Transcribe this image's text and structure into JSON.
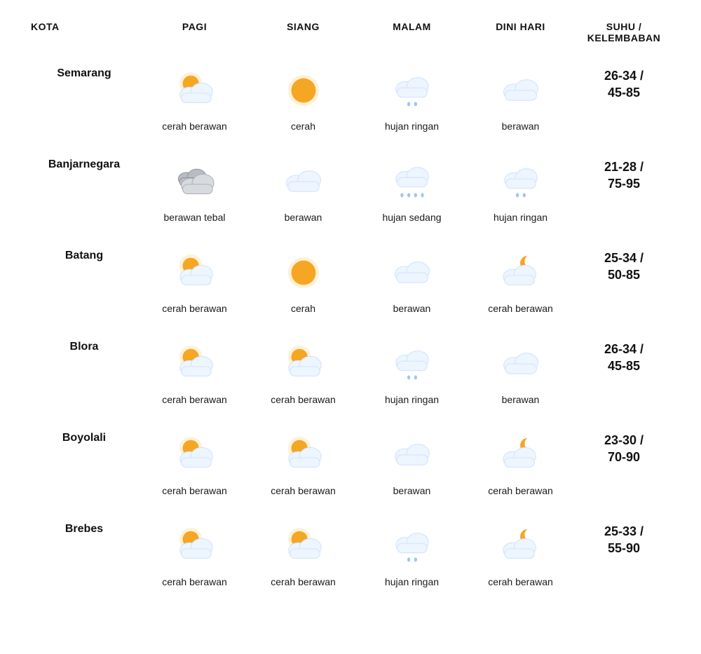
{
  "table": {
    "headers": {
      "city": "KOTA",
      "morning": "PAGI",
      "noon": "SIANG",
      "night": "MALAM",
      "late": "DINI HARI",
      "temp": "SUHU / KELEMBABAN"
    },
    "icon_style": {
      "sun_fill": "#f5a623",
      "sun_glow": "#ffe7b8",
      "moon_fill": "#f5a623",
      "cloud_light_fill": "#edf5ff",
      "cloud_light_stroke": "#cfe2fb",
      "cloud_dark_fill": "#b9bdc3",
      "cloud_dark_stroke": "#8f949b",
      "rain_fill": "#9ec7f2"
    },
    "rows": [
      {
        "city": "Semarang",
        "temp": "26-34 / 45-85",
        "cells": [
          {
            "icon": "sun-cloud",
            "label": "cerah berawan"
          },
          {
            "icon": "sun",
            "label": "cerah"
          },
          {
            "icon": "rain-light",
            "label": "hujan ringan"
          },
          {
            "icon": "cloud",
            "label": "berawan"
          }
        ]
      },
      {
        "city": "Banjarnegara",
        "temp": "21-28 / 75-95",
        "cells": [
          {
            "icon": "cloud-dark",
            "label": "berawan tebal"
          },
          {
            "icon": "cloud",
            "label": "berawan"
          },
          {
            "icon": "rain-med",
            "label": "hujan sedang"
          },
          {
            "icon": "rain-light",
            "label": "hujan ringan"
          }
        ]
      },
      {
        "city": "Batang",
        "temp": "25-34 / 50-85",
        "cells": [
          {
            "icon": "sun-cloud",
            "label": "cerah berawan"
          },
          {
            "icon": "sun",
            "label": "cerah"
          },
          {
            "icon": "cloud",
            "label": "berawan"
          },
          {
            "icon": "moon-cloud",
            "label": "cerah berawan"
          }
        ]
      },
      {
        "city": "Blora",
        "temp": "26-34 / 45-85",
        "cells": [
          {
            "icon": "sun-cloud",
            "label": "cerah berawan"
          },
          {
            "icon": "sun-cloud",
            "label": "cerah berawan"
          },
          {
            "icon": "rain-light",
            "label": "hujan ringan"
          },
          {
            "icon": "cloud",
            "label": "berawan"
          }
        ]
      },
      {
        "city": "Boyolali",
        "temp": "23-30 / 70-90",
        "cells": [
          {
            "icon": "sun-cloud",
            "label": "cerah berawan"
          },
          {
            "icon": "sun-cloud",
            "label": "cerah berawan"
          },
          {
            "icon": "cloud",
            "label": "berawan"
          },
          {
            "icon": "moon-cloud",
            "label": "cerah berawan"
          }
        ]
      },
      {
        "city": "Brebes",
        "temp": "25-33 / 55-90",
        "cells": [
          {
            "icon": "sun-cloud",
            "label": "cerah berawan"
          },
          {
            "icon": "sun-cloud",
            "label": "cerah berawan"
          },
          {
            "icon": "rain-light",
            "label": "hujan ringan"
          },
          {
            "icon": "moon-cloud",
            "label": "cerah berawan"
          }
        ]
      }
    ]
  }
}
